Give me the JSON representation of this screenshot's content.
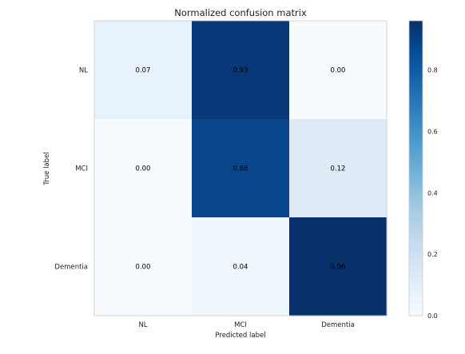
{
  "chart_data": {
    "type": "heatmap",
    "title": "Normalized confusion matrix",
    "xlabel": "Predicted label",
    "ylabel": "True label",
    "x_categories": [
      "NL",
      "MCI",
      "Dementia"
    ],
    "y_categories": [
      "NL",
      "MCI",
      "Dementia"
    ],
    "values": [
      [
        0.07,
        0.93,
        0.0
      ],
      [
        0.0,
        0.88,
        0.12
      ],
      [
        0.0,
        0.04,
        0.96
      ]
    ],
    "value_labels": [
      [
        "0.07",
        "0.93",
        "0.00"
      ],
      [
        "0.00",
        "0.88",
        "0.12"
      ],
      [
        "0.00",
        "0.04",
        "0.96"
      ]
    ],
    "colormap": "Blues",
    "colorbar": {
      "range": [
        0,
        0.96
      ],
      "ticks": [
        0.0,
        0.2,
        0.4,
        0.6,
        0.8
      ],
      "tick_labels": [
        "0.0",
        "0.2",
        "0.4",
        "0.6",
        "0.8"
      ]
    },
    "grid": false
  },
  "colors": {
    "text_dark": "#000000",
    "text_light": "#ffffff",
    "frame": "#cccccc"
  }
}
